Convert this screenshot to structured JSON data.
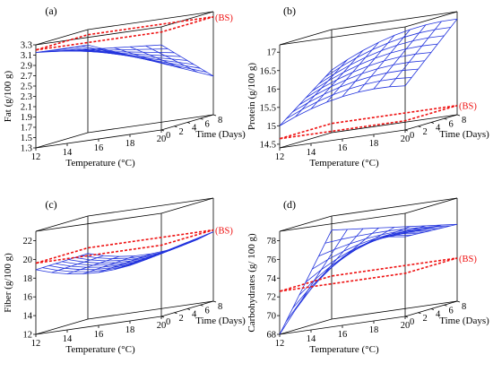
{
  "figure": {
    "colors": {
      "surface": "#2233dd",
      "reference": "#ee1111",
      "box": "#000000"
    },
    "panels": [
      {
        "panel_label": "(a)",
        "chart_data": {
          "type": "surface3d",
          "title": "",
          "xlabel": "Temperature (°C)",
          "ylabel": "Time (Days)",
          "zlabel": "Fat (g/100 g)",
          "x_ticks": [
            "12",
            "14",
            "16",
            "18",
            "20"
          ],
          "y_ticks": [
            "0",
            "2",
            "4",
            "6",
            "8"
          ],
          "z_ticks": [
            "3.3",
            "3.1",
            "2.9",
            "2.7",
            "2.5",
            "2.3",
            "2.1",
            "1.9",
            "1.7",
            "1.5",
            "1.3"
          ],
          "xlim": [
            12,
            20
          ],
          "ylim": [
            0,
            8
          ],
          "zlim": [
            1.3,
            3.3
          ],
          "reference_label": "(BS)",
          "reference_value": 3.2,
          "x": [
            12,
            13,
            14,
            15,
            16,
            17,
            18,
            19,
            20
          ],
          "y": [
            0,
            1,
            2,
            3,
            4,
            5,
            6,
            7,
            8
          ],
          "z_corners": {
            "x12_y0": 3.15,
            "x20_y0": 2.95,
            "x12_y8": 3.0,
            "x20_y8": 2.05
          }
        }
      },
      {
        "panel_label": "(b)",
        "chart_data": {
          "type": "surface3d",
          "title": "",
          "xlabel": "Temperature (°C)",
          "ylabel": "Time (Days)",
          "zlabel": "Protein (g/100 g)",
          "x_ticks": [
            "12",
            "14",
            "16",
            "18",
            "20"
          ],
          "y_ticks": [
            "0",
            "2",
            "4",
            "6",
            "8"
          ],
          "z_ticks": [
            "17",
            "16.5",
            "16",
            "15.5",
            "15",
            "14.5"
          ],
          "xlim": [
            12,
            20
          ],
          "ylim": [
            0,
            8
          ],
          "zlim": [
            14.4,
            17.2
          ],
          "reference_label": "(BS)",
          "reference_value": 14.65,
          "x": [
            12,
            13,
            14,
            15,
            16,
            17,
            18,
            19,
            20
          ],
          "y": [
            0,
            1,
            2,
            3,
            4,
            5,
            6,
            7,
            8
          ],
          "z_corners": {
            "x12_y0": 15.0,
            "x20_y0": 15.6,
            "x12_y8": 16.1,
            "x20_y8": 17.0
          }
        }
      },
      {
        "panel_label": "(c)",
        "chart_data": {
          "type": "surface3d",
          "title": "",
          "xlabel": "Temperature (°C)",
          "ylabel": "Time (Days)",
          "zlabel": "Fiber (g/100 g)",
          "x_ticks": [
            "12",
            "14",
            "16",
            "18",
            "20"
          ],
          "y_ticks": [
            "0",
            "2",
            "4",
            "6",
            "8"
          ],
          "z_ticks": [
            "22",
            "20",
            "18",
            "16",
            "14",
            "12"
          ],
          "xlim": [
            12,
            20
          ],
          "ylim": [
            0,
            8
          ],
          "zlim": [
            12,
            23
          ],
          "reference_label": "(BS)",
          "reference_value": 19.6,
          "x": [
            12,
            13,
            14,
            15,
            16,
            17,
            18,
            19,
            20
          ],
          "y": [
            0,
            1,
            2,
            3,
            4,
            5,
            6,
            7,
            8
          ],
          "z_corners": {
            "x12_y0": 18.9,
            "x20_y0": 18.8,
            "x12_y8": 19.0,
            "x20_y8": 19.4
          }
        }
      },
      {
        "panel_label": "(d)",
        "chart_data": {
          "type": "surface3d",
          "title": "",
          "xlabel": "Temperature (°C)",
          "ylabel": "Time (Days)",
          "zlabel": "Carbohydrates (g/ 100 g)",
          "x_ticks": [
            "12",
            "14",
            "16",
            "18",
            "20"
          ],
          "y_ticks": [
            "0",
            "2",
            "4",
            "6",
            "8"
          ],
          "z_ticks": [
            "78",
            "76",
            "74",
            "72",
            "70",
            "68"
          ],
          "xlim": [
            12,
            20
          ],
          "ylim": [
            0,
            8
          ],
          "zlim": [
            68,
            79
          ],
          "reference_label": "(BS)",
          "reference_value": 72.6,
          "x": [
            12,
            13,
            14,
            15,
            16,
            17,
            18,
            19,
            20
          ],
          "y": [
            0,
            1,
            2,
            3,
            4,
            5,
            6,
            7,
            8
          ],
          "z_corners": {
            "x12_y0": 68.0,
            "x20_y0": 76.5,
            "x12_y8": 77.5,
            "x20_y8": 76.2
          }
        }
      }
    ]
  }
}
